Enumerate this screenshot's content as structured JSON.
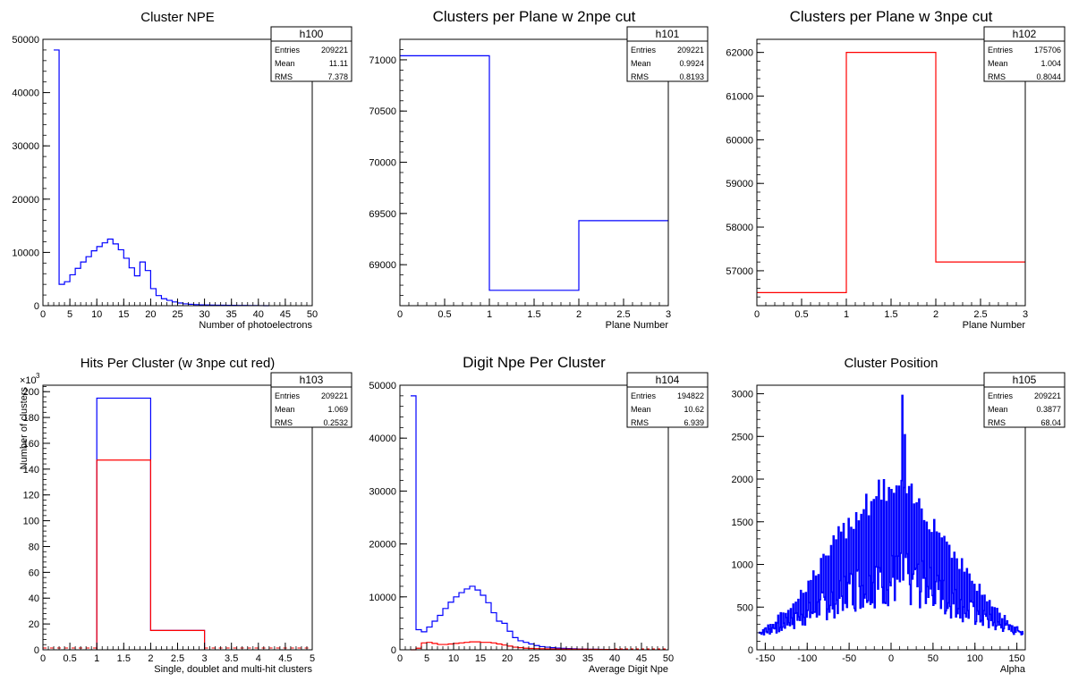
{
  "chart_data": [
    {
      "id": "h100",
      "type": "histogram",
      "title": "Cluster NPE",
      "xlabel": "Number of photoelectrons",
      "ylabel": "",
      "xlim": [
        0,
        50
      ],
      "ylim": [
        0,
        50000
      ],
      "xticks": [
        0,
        5,
        10,
        15,
        20,
        25,
        30,
        35,
        40,
        45,
        50
      ],
      "yticks": [
        0,
        10000,
        20000,
        30000,
        40000,
        50000
      ],
      "grid": false,
      "stats": {
        "name": "h100",
        "rows": [
          [
            "Entries",
            "209221"
          ],
          [
            "Mean",
            "11.11"
          ],
          [
            "RMS",
            "7.378"
          ]
        ]
      },
      "series": [
        {
          "color": "#0000ff",
          "bin_width": 1,
          "x0": 2,
          "values": [
            48000,
            4000,
            4500,
            5800,
            7000,
            8200,
            9200,
            10300,
            11100,
            11800,
            12500,
            11600,
            10500,
            8900,
            7100,
            5600,
            8200,
            6600,
            3200,
            1900,
            1300,
            1000,
            700,
            500,
            350,
            260,
            200,
            160,
            130,
            110,
            90,
            80,
            70,
            60,
            50,
            40,
            30,
            20,
            10,
            0
          ]
        }
      ]
    },
    {
      "id": "h101",
      "type": "histogram",
      "title": "Clusters per Plane w 2npe cut",
      "xlabel": "Plane Number",
      "ylabel": "",
      "xlim": [
        0,
        3
      ],
      "ylim": [
        68600,
        71200
      ],
      "xticks": [
        0,
        0.5,
        1,
        1.5,
        2,
        2.5,
        3
      ],
      "yticks": [
        69000,
        69500,
        70000,
        70500,
        71000
      ],
      "grid": false,
      "stats": {
        "name": "h101",
        "rows": [
          [
            "Entries",
            "209221"
          ],
          [
            "Mean",
            "0.9924"
          ],
          [
            "RMS",
            "0.8193"
          ]
        ]
      },
      "series": [
        {
          "color": "#0000ff",
          "bin_width": 1,
          "x0": 0,
          "values": [
            71040,
            68750,
            69430
          ]
        }
      ]
    },
    {
      "id": "h102",
      "type": "histogram",
      "title": "Clusters per Plane w 3npe cut",
      "xlabel": "Plane Number",
      "ylabel": "",
      "xlim": [
        0,
        3
      ],
      "ylim": [
        56200,
        62300
      ],
      "xticks": [
        0,
        0.5,
        1,
        1.5,
        2,
        2.5,
        3
      ],
      "yticks": [
        57000,
        58000,
        59000,
        60000,
        61000,
        62000
      ],
      "grid": false,
      "stats": {
        "name": "h102",
        "rows": [
          [
            "Entries",
            "175706"
          ],
          [
            "Mean",
            "1.004"
          ],
          [
            "RMS",
            "0.8044"
          ]
        ]
      },
      "series": [
        {
          "color": "#ff0000",
          "bin_width": 1,
          "x0": 0,
          "values": [
            56500,
            62000,
            57200
          ]
        }
      ]
    },
    {
      "id": "h103",
      "type": "histogram",
      "title": "Hits Per Cluster (w 3npe cut red)",
      "xlabel": "Single, doublet and multi-hit clusters",
      "ylabel": "Number of clusters",
      "exponent_label": "×10",
      "exponent_power": "3",
      "xlim": [
        0,
        5
      ],
      "ylim": [
        0,
        205
      ],
      "xticks": [
        0,
        0.5,
        1,
        1.5,
        2,
        2.5,
        3,
        3.5,
        4,
        4.5,
        5
      ],
      "yticks": [
        0,
        20,
        40,
        60,
        80,
        100,
        120,
        140,
        160,
        180,
        200
      ],
      "grid": false,
      "stats": {
        "name": "h103",
        "rows": [
          [
            "Entries",
            "209221"
          ],
          [
            "Mean",
            "1.069"
          ],
          [
            "RMS",
            "0.2532"
          ]
        ]
      },
      "series": [
        {
          "color": "#0000ff",
          "bin_width": 1,
          "x0": 1,
          "values": [
            195,
            15
          ]
        },
        {
          "color": "#ff0000",
          "bin_width": 1,
          "x0": 1,
          "values": [
            147,
            15
          ]
        }
      ]
    },
    {
      "id": "h104",
      "type": "histogram",
      "title": "Digit Npe Per Cluster",
      "xlabel": "Average Digit Npe",
      "ylabel": "",
      "xlim": [
        0,
        50
      ],
      "ylim": [
        0,
        50000
      ],
      "xticks": [
        0,
        5,
        10,
        15,
        20,
        25,
        30,
        35,
        40,
        45,
        50
      ],
      "yticks": [
        0,
        10000,
        20000,
        30000,
        40000,
        50000
      ],
      "grid": false,
      "stats": {
        "name": "h104",
        "rows": [
          [
            "Entries",
            "194822"
          ],
          [
            "Mean",
            "10.62"
          ],
          [
            "RMS",
            "6.939"
          ]
        ]
      },
      "series": [
        {
          "color": "#0000ff",
          "bin_width": 1,
          "x0": 2,
          "values": [
            48000,
            3800,
            3400,
            4300,
            5400,
            6500,
            7800,
            9000,
            10000,
            10800,
            11500,
            12000,
            11300,
            10300,
            8900,
            7000,
            5400,
            5000,
            3500,
            2300,
            1700,
            1400,
            1100,
            800,
            600,
            500,
            400,
            330,
            280,
            230,
            190,
            160,
            140,
            120,
            100,
            80,
            60,
            50,
            40,
            30
          ]
        },
        {
          "color": "#ff0000",
          "bin_width": 1,
          "x0": 2,
          "values": [
            0,
            300,
            1300,
            1400,
            1200,
            1000,
            1000,
            1100,
            1200,
            1300,
            1400,
            1500,
            1500,
            1400,
            1400,
            1300,
            1100,
            900,
            700,
            500,
            400,
            300,
            250,
            220,
            200,
            180,
            160,
            150,
            140,
            130,
            120,
            110,
            100,
            90,
            80,
            70,
            60,
            50,
            40,
            30
          ]
        }
      ]
    },
    {
      "id": "h105",
      "type": "histogram",
      "title": "Cluster Position",
      "xlabel": "Alpha",
      "ylabel": "",
      "xlim": [
        -160,
        160
      ],
      "ylim": [
        0,
        3100
      ],
      "xticks": [
        -150,
        -100,
        -50,
        0,
        50,
        100,
        150
      ],
      "yticks": [
        0,
        500,
        1000,
        1500,
        2000,
        2500,
        3000
      ],
      "grid": false,
      "stats": {
        "name": "h105",
        "rows": [
          [
            "Entries",
            "209221"
          ],
          [
            "Mean",
            "0.3877"
          ],
          [
            "RMS",
            "68.04"
          ]
        ]
      },
      "series": [
        {
          "color": "#0000ff",
          "envelope": "spiky",
          "peak_x": 13,
          "peak_value": 2980
        }
      ]
    }
  ]
}
